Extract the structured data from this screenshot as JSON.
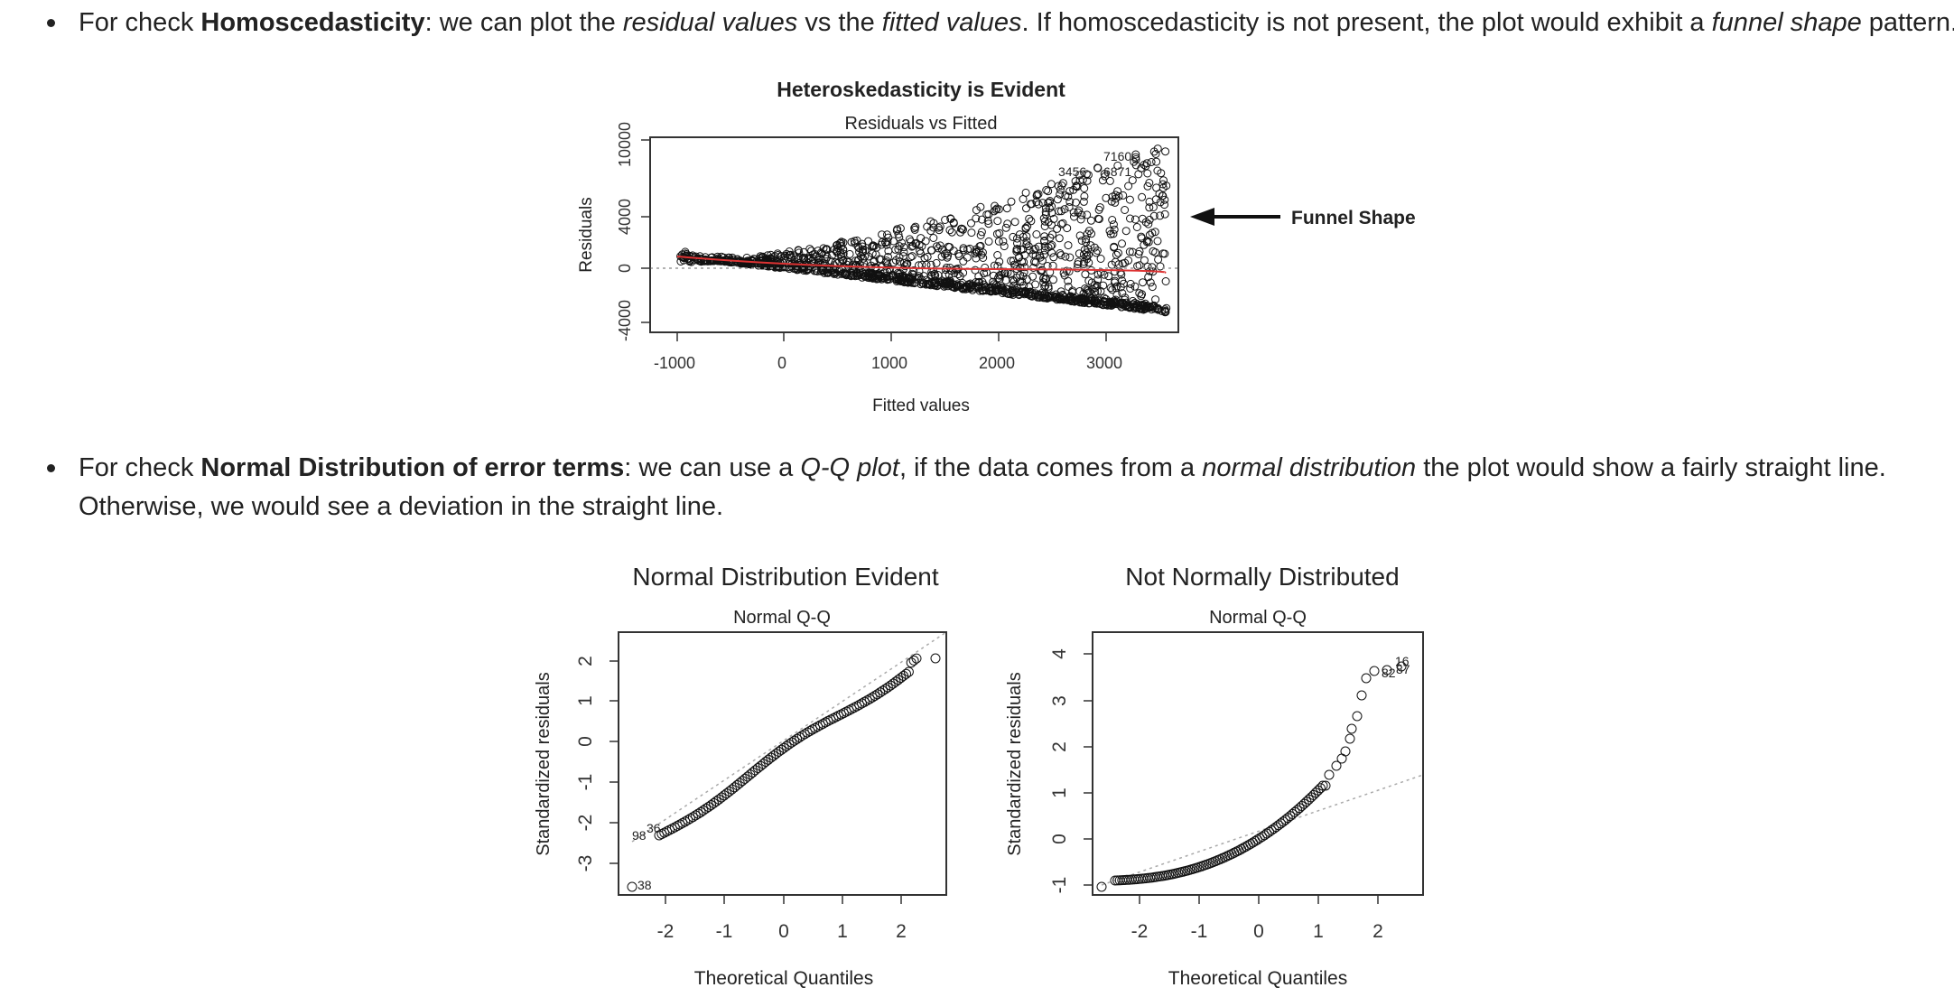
{
  "bullets": [
    {
      "prefix": "For check ",
      "bold": "Homoscedasticity",
      "t1": ": we can plot the ",
      "i1": "residual values",
      "t2": " vs the ",
      "i2": "fitted values",
      "t3": ". If homoscedasticity is not present, the plot would exhibit a ",
      "i3": "funnel shape",
      "t4": " pattern."
    },
    {
      "prefix": "For check ",
      "bold": "Normal Distribution of error terms",
      "t1": ": we can use a ",
      "i1": "Q-Q plot",
      "t2": ", if the data comes from a ",
      "i2": "normal distribution",
      "t3": " the plot would show a fairly straight line.",
      "line2": "Otherwise, we would see a deviation in the straight line."
    }
  ],
  "figures": {
    "residuals": {
      "heading": "Heteroskedasticity is Evident",
      "annotation": "Funnel Shape",
      "chart_data": {
        "type": "scatter",
        "title": "Residuals vs Fitted",
        "xlabel": "Fitted values",
        "ylabel": "Residuals",
        "xlim": [
          -1100,
          3700
        ],
        "ylim": [
          -5000,
          10500
        ],
        "x_ticks": [
          "-1000",
          "0",
          "1000",
          "2000",
          "3000"
        ],
        "y_ticks": [
          "-4000",
          "0",
          "4000",
          "10000"
        ],
        "point_labels": [
          "7160",
          "3456",
          "6871"
        ]
      }
    },
    "qq_normal": {
      "heading": "Normal Distribution Evident",
      "chart_data": {
        "type": "scatter",
        "title": "Normal Q-Q",
        "xlabel": "Theoretical Quantiles",
        "ylabel": "Standardized residuals",
        "xlim": [
          -2.5,
          2.8
        ],
        "ylim": [
          -3.7,
          2.5
        ],
        "x_ticks": [
          "-2",
          "-1",
          "0",
          "1",
          "2"
        ],
        "y_ticks": [
          "-3",
          "-2",
          "-1",
          "0",
          "1",
          "2"
        ],
        "point_labels": [
          "36",
          "98",
          "38"
        ]
      }
    },
    "qq_not_normal": {
      "heading": "Not Normally Distributed",
      "chart_data": {
        "type": "scatter",
        "title": "Normal Q-Q",
        "xlabel": "Theoretical Quantiles",
        "ylabel": "Standardized residuals",
        "xlim": [
          -2.6,
          2.8
        ],
        "ylim": [
          -1.2,
          4.2
        ],
        "x_ticks": [
          "-2",
          "-1",
          "0",
          "1",
          "2"
        ],
        "y_ticks": [
          "-1",
          "0",
          "1",
          "2",
          "3",
          "4"
        ],
        "point_labels": [
          "16",
          "82",
          "87"
        ]
      }
    }
  }
}
